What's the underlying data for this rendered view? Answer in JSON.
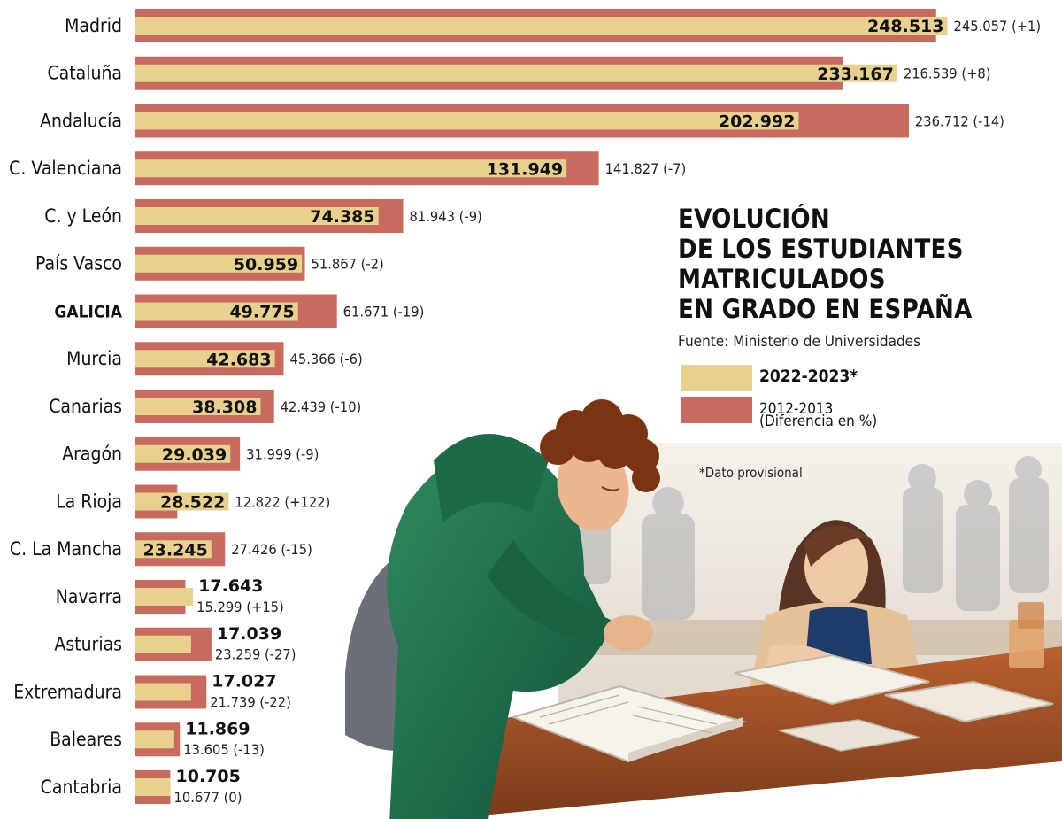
{
  "chart_data": {
    "type": "bar",
    "title_lines": [
      "EVOLUCIÓN",
      "DE LOS ESTUDIANTES",
      "MATRICULADOS",
      "EN GRADO EN ESPAÑA"
    ],
    "source": "Fuente: Ministerio de Universidades",
    "footnote": "*Dato provisional",
    "legend": {
      "current": "2022-2023*",
      "previous": "2012-2013",
      "previous_note": "(Diferencia en %)"
    },
    "colors": {
      "current": "#e8d08e",
      "previous": "#c86a5e"
    },
    "categories": [
      "Madrid",
      "Cataluña",
      "Andalucía",
      "C. Valenciana",
      "C. y León",
      "País Vasco",
      "GALICIA",
      "Murcia",
      "Canarias",
      "Aragón",
      "La Rioja",
      "C. La Mancha",
      "Navarra",
      "Asturias",
      "Extremadura",
      "Baleares",
      "Cantabria"
    ],
    "highlight": "GALICIA",
    "series": [
      {
        "name": "2022-2023*",
        "values": [
          248513,
          233167,
          202992,
          131949,
          74385,
          50959,
          49775,
          42683,
          38308,
          29039,
          28522,
          23245,
          17643,
          17039,
          17027,
          11869,
          10705
        ],
        "labels": [
          "248.513",
          "233.167",
          "202.992",
          "131.949",
          "74.385",
          "50.959",
          "49.775",
          "42.683",
          "38.308",
          "29.039",
          "28.522",
          "23.245",
          "17.643",
          "17.039",
          "17.027",
          "11.869",
          "10.705"
        ]
      },
      {
        "name": "2012-2013",
        "values": [
          245057,
          216539,
          236712,
          141827,
          81943,
          51867,
          61671,
          45366,
          42439,
          31999,
          12822,
          27426,
          15299,
          23259,
          21739,
          13605,
          10677
        ],
        "labels": [
          "245.057",
          "216.539",
          "236.712",
          "141.827",
          "81.943",
          "51.867",
          "61.671",
          "45.366",
          "42.439",
          "31.999",
          "12.822",
          "27.426",
          "15.299",
          "23.259",
          "21.739",
          "13.605",
          "10.677"
        ],
        "diff_labels": [
          "(+1)",
          "(+8)",
          "(-14)",
          "(-7)",
          "(-9)",
          "(-2)",
          "(-19)",
          "(-6)",
          "(-10)",
          "(-9)",
          "(+122)",
          "(-15)",
          "(+15)",
          "(-27)",
          "(-22)",
          "(-13)",
          "(0)"
        ]
      }
    ],
    "xlim": [
      0,
      250000
    ]
  }
}
